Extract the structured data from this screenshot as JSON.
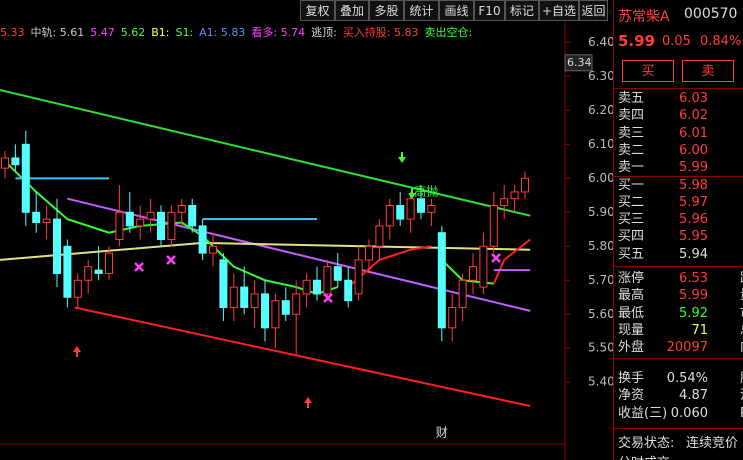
{
  "toolbar": [
    "复权",
    "叠加",
    "多股",
    "统计",
    "画线",
    "F10",
    "标记",
    "+自选",
    "返回"
  ],
  "indicator_bar": [
    {
      "text": "5.33",
      "color": "#ff3b3b"
    },
    {
      "text": "中轨: 5.61",
      "color": "#cccccc"
    },
    {
      "text": "5.47",
      "color": "#ff40ff"
    },
    {
      "text": "5.62",
      "color": "#40ff40"
    },
    {
      "text": "B1:",
      "color": "#ffff40"
    },
    {
      "text": "S1:",
      "color": "#40ff40"
    },
    {
      "text": "A1: 5.83",
      "color": "#5a8cff"
    },
    {
      "text": "看多: 5.74",
      "color": "#ff40ff"
    },
    {
      "text": "逃顶:",
      "color": "#dddddd"
    },
    {
      "text": "买入持股: 5.83",
      "color": "#ff3b3b"
    },
    {
      "text": "卖出空仓:",
      "color": "#40ff40"
    }
  ],
  "chart_data": {
    "type": "candlestick",
    "ylim": [
      5.23,
      6.46
    ],
    "yticks": [
      {
        "value": 6.4,
        "label": "6.40"
      },
      {
        "value": 6.3,
        "label": "6.30"
      },
      {
        "value": 6.2,
        "label": "6.20"
      },
      {
        "value": 6.1,
        "label": "6.10"
      },
      {
        "value": 6.0,
        "label": "6.00"
      },
      {
        "value": 5.9,
        "label": "5.90"
      },
      {
        "value": 5.8,
        "label": "5.80"
      },
      {
        "value": 5.7,
        "label": "5.70"
      },
      {
        "value": 5.6,
        "label": "5.60"
      },
      {
        "value": 5.5,
        "label": "5.50"
      },
      {
        "value": 5.4,
        "label": "5.40"
      }
    ],
    "price_marker": {
      "value": 6.34,
      "label": "6.34"
    },
    "up_color": "#ff3b3b",
    "down_color": "#54ffff",
    "open": [
      6.03,
      6.06,
      6.1,
      5.9,
      5.87,
      5.88,
      5.8,
      5.65,
      5.7,
      5.73,
      5.72,
      5.82,
      5.9,
      5.86,
      5.88,
      5.9,
      5.82,
      5.9,
      5.92,
      5.86,
      5.78,
      5.76,
      5.62,
      5.68,
      5.62,
      5.66,
      5.56,
      5.64,
      5.6,
      5.66,
      5.7,
      5.66,
      5.74,
      5.7,
      5.66,
      5.76,
      5.8,
      5.86,
      5.92,
      5.88,
      5.94,
      5.9,
      5.84,
      5.56,
      5.62,
      5.7,
      5.68,
      5.8,
      5.92,
      5.94,
      5.96
    ],
    "high": [
      6.08,
      6.1,
      6.14,
      5.96,
      5.92,
      5.94,
      5.82,
      5.72,
      5.76,
      5.8,
      5.8,
      5.98,
      5.96,
      5.92,
      5.94,
      5.92,
      5.92,
      5.94,
      5.94,
      5.88,
      5.84,
      5.78,
      5.72,
      5.74,
      5.7,
      5.7,
      5.66,
      5.68,
      5.7,
      5.72,
      5.74,
      5.76,
      5.78,
      5.74,
      5.8,
      5.82,
      5.88,
      5.94,
      5.96,
      5.96,
      5.98,
      5.94,
      5.86,
      5.66,
      5.72,
      5.78,
      5.84,
      5.96,
      5.98,
      5.98,
      6.02
    ],
    "low": [
      6.0,
      6.02,
      5.86,
      5.84,
      5.82,
      5.68,
      5.62,
      5.62,
      5.66,
      5.7,
      5.7,
      5.8,
      5.84,
      5.82,
      5.84,
      5.8,
      5.8,
      5.86,
      5.84,
      5.76,
      5.74,
      5.58,
      5.58,
      5.6,
      5.56,
      5.52,
      5.5,
      5.58,
      5.48,
      5.62,
      5.64,
      5.64,
      5.68,
      5.62,
      5.64,
      5.72,
      5.76,
      5.82,
      5.86,
      5.84,
      5.88,
      5.86,
      5.52,
      5.52,
      5.58,
      5.66,
      5.66,
      5.78,
      5.88,
      5.9,
      5.94
    ],
    "close": [
      6.06,
      6.04,
      5.9,
      5.87,
      5.88,
      5.72,
      5.65,
      5.7,
      5.74,
      5.72,
      5.78,
      5.9,
      5.86,
      5.88,
      5.9,
      5.82,
      5.9,
      5.92,
      5.86,
      5.78,
      5.8,
      5.62,
      5.68,
      5.62,
      5.66,
      5.56,
      5.64,
      5.6,
      5.66,
      5.7,
      5.66,
      5.74,
      5.7,
      5.64,
      5.76,
      5.8,
      5.86,
      5.92,
      5.88,
      5.94,
      5.9,
      5.92,
      5.56,
      5.62,
      5.7,
      5.74,
      5.8,
      5.92,
      5.94,
      5.96,
      6.0
    ],
    "overlays": [
      {
        "color": "#30e030",
        "x": [
          -0.5,
          50.5
        ],
        "values": [
          6.26,
          5.89
        ]
      },
      {
        "color": "#ff2020",
        "x": [
          6.7,
          50.5
        ],
        "values": [
          5.62,
          5.33
        ]
      },
      {
        "color": "#c060ff",
        "x": [
          6,
          50.5
        ],
        "values": [
          5.94,
          5.61
        ]
      },
      {
        "color": "#e0e080",
        "x": [
          -0.5,
          19,
          50.5
        ],
        "values": [
          5.76,
          5.81,
          5.79
        ]
      },
      {
        "color": "#30ff30",
        "x": [
          0,
          3,
          6,
          10,
          13,
          17,
          19,
          22,
          25,
          28,
          30,
          32,
          33,
          42,
          44,
          47
        ],
        "values": [
          6.05,
          5.96,
          5.88,
          5.84,
          5.86,
          5.87,
          5.83,
          5.74,
          5.7,
          5.68,
          5.66,
          5.68,
          null,
          5.76,
          5.7,
          5.69
        ]
      },
      {
        "color": "#ff2020",
        "x": [
          33,
          36,
          39,
          41,
          41.5,
          47,
          48,
          50.5
        ],
        "values": [
          5.68,
          5.76,
          5.79,
          5.8,
          null,
          5.69,
          5.76,
          5.82
        ]
      },
      {
        "color": "#3cc8ff",
        "x": [
          1,
          10
        ],
        "values": [
          6.0,
          6.0
        ]
      },
      {
        "color": "#3cc8ff",
        "x": [
          19,
          30
        ],
        "values": [
          5.88,
          5.88
        ]
      },
      {
        "color": "#c060ff",
        "x": [
          47,
          50.5
        ],
        "values": [
          5.73,
          5.73
        ]
      }
    ],
    "annotations": [
      {
        "text": "高抛",
        "x": 40.5,
        "value": 5.96,
        "color": "#30ff30"
      },
      {
        "text": "财",
        "x": 42,
        "value": 5.25,
        "color": "#dddddd"
      }
    ]
  },
  "quote": {
    "name": "苏常柴A",
    "code": "000570",
    "price": "5.99",
    "change": "0.05",
    "pct": "0.84%",
    "buy": "买",
    "sell": "卖",
    "book": [
      [
        "卖五",
        "6.03"
      ],
      [
        "卖四",
        "6.02"
      ],
      [
        "卖三",
        "6.01"
      ],
      [
        "卖二",
        "6.00"
      ],
      [
        "卖一",
        "5.99"
      ],
      [
        "买一",
        "5.98"
      ],
      [
        "买二",
        "5.97"
      ],
      [
        "买三",
        "5.96"
      ],
      [
        "买四",
        "5.95"
      ],
      [
        "买五",
        "5.94"
      ]
    ],
    "stats": [
      [
        "涨停",
        "6.53",
        "跌"
      ],
      [
        "最高",
        "5.99",
        "量"
      ],
      [
        "最低",
        "5.92",
        "市"
      ],
      [
        "现量",
        "71",
        "总"
      ],
      [
        "外盘",
        "20097",
        "内"
      ]
    ],
    "stats2": [
      [
        "换手",
        "0.54%",
        "股"
      ],
      [
        "净资",
        "4.87",
        "流"
      ],
      [
        "收益(三)",
        "0.060",
        "P"
      ]
    ],
    "status_label": "交易状态:",
    "status": "连续竞价",
    "tab": "分时成交"
  }
}
